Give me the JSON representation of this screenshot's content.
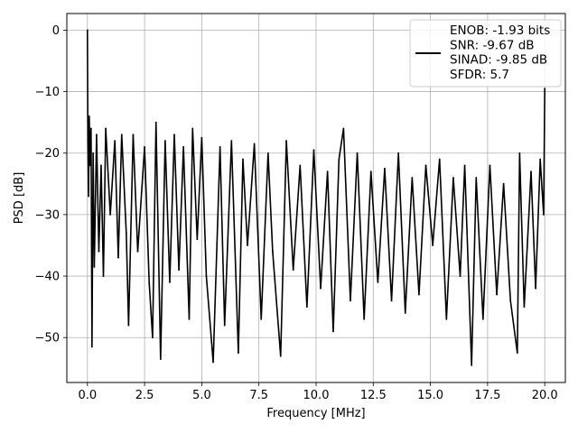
{
  "chart_data": {
    "type": "line",
    "title": "",
    "xlabel": "Frequency [MHz]",
    "ylabel": "PSD [dB]",
    "xlim": [
      -0.9,
      20.9
    ],
    "ylim": [
      -57.3,
      2.7
    ],
    "xticks": [
      0.0,
      2.5,
      5.0,
      7.5,
      10.0,
      12.5,
      15.0,
      17.5,
      20.0
    ],
    "xtick_labels": [
      "0.0",
      "2.5",
      "5.0",
      "7.5",
      "10.0",
      "12.5",
      "15.0",
      "17.5",
      "20.0"
    ],
    "yticks": [
      0,
      -10,
      -20,
      -30,
      -40,
      -50
    ],
    "ytick_labels": [
      "0",
      "−10",
      "−20",
      "−30",
      "−40",
      "−50"
    ],
    "grid": true,
    "legend_position": "top-right",
    "line_color": "#000000",
    "series": [
      {
        "legend_lines": [
          "ENOB: -1.93 bits",
          "SNR: -9.67 dB",
          "SINAD: -9.85 dB",
          "SFDR: 5.7"
        ],
        "x": [
          0.0,
          0.02,
          0.05,
          0.08,
          0.12,
          0.16,
          0.2,
          0.25,
          0.3,
          0.4,
          0.5,
          0.6,
          0.7,
          0.8,
          1.0,
          1.2,
          1.35,
          1.5,
          1.7,
          1.8,
          2.0,
          2.2,
          2.5,
          2.7,
          2.85,
          3.0,
          3.2,
          3.4,
          3.6,
          3.8,
          4.0,
          4.2,
          4.45,
          4.6,
          4.8,
          5.0,
          5.2,
          5.5,
          5.8,
          6.0,
          6.3,
          6.6,
          6.8,
          7.0,
          7.3,
          7.6,
          7.9,
          8.1,
          8.45,
          8.7,
          9.0,
          9.3,
          9.6,
          9.9,
          10.2,
          10.5,
          10.75,
          11.0,
          11.2,
          11.5,
          11.8,
          12.1,
          12.4,
          12.7,
          13.0,
          13.3,
          13.6,
          13.9,
          14.2,
          14.5,
          14.8,
          15.1,
          15.4,
          15.7,
          16.0,
          16.3,
          16.5,
          16.8,
          17.0,
          17.3,
          17.6,
          17.9,
          18.2,
          18.5,
          18.8,
          18.9,
          19.1,
          19.4,
          19.6,
          19.8,
          19.95,
          20.0
        ],
        "y": [
          0.0,
          -18.0,
          -27.0,
          -14.0,
          -22.0,
          -16.0,
          -51.5,
          -20.0,
          -38.5,
          -17.0,
          -36.0,
          -22.0,
          -40.0,
          -16.0,
          -30.0,
          -18.0,
          -37.0,
          -17.0,
          -33.0,
          -48.0,
          -17.0,
          -36.0,
          -19.0,
          -41.0,
          -50.0,
          -15.0,
          -53.5,
          -18.0,
          -41.0,
          -17.0,
          -39.0,
          -19.0,
          -47.0,
          -16.0,
          -34.0,
          -17.5,
          -40.0,
          -54.0,
          -19.0,
          -48.0,
          -18.0,
          -52.5,
          -21.0,
          -35.0,
          -18.5,
          -47.0,
          -20.0,
          -36.0,
          -53.0,
          -18.0,
          -39.0,
          -22.0,
          -45.0,
          -19.5,
          -42.0,
          -23.0,
          -49.0,
          -21.0,
          -16.0,
          -44.0,
          -20.0,
          -47.0,
          -23.0,
          -41.0,
          -22.5,
          -44.0,
          -20.0,
          -46.0,
          -24.0,
          -43.0,
          -22.0,
          -35.0,
          -21.0,
          -47.0,
          -24.0,
          -40.0,
          -22.0,
          -54.5,
          -24.0,
          -47.0,
          -22.0,
          -43.0,
          -25.0,
          -44.0,
          -52.5,
          -20.0,
          -45.0,
          -23.0,
          -42.0,
          -21.0,
          -30.0,
          -9.5
        ]
      }
    ]
  }
}
